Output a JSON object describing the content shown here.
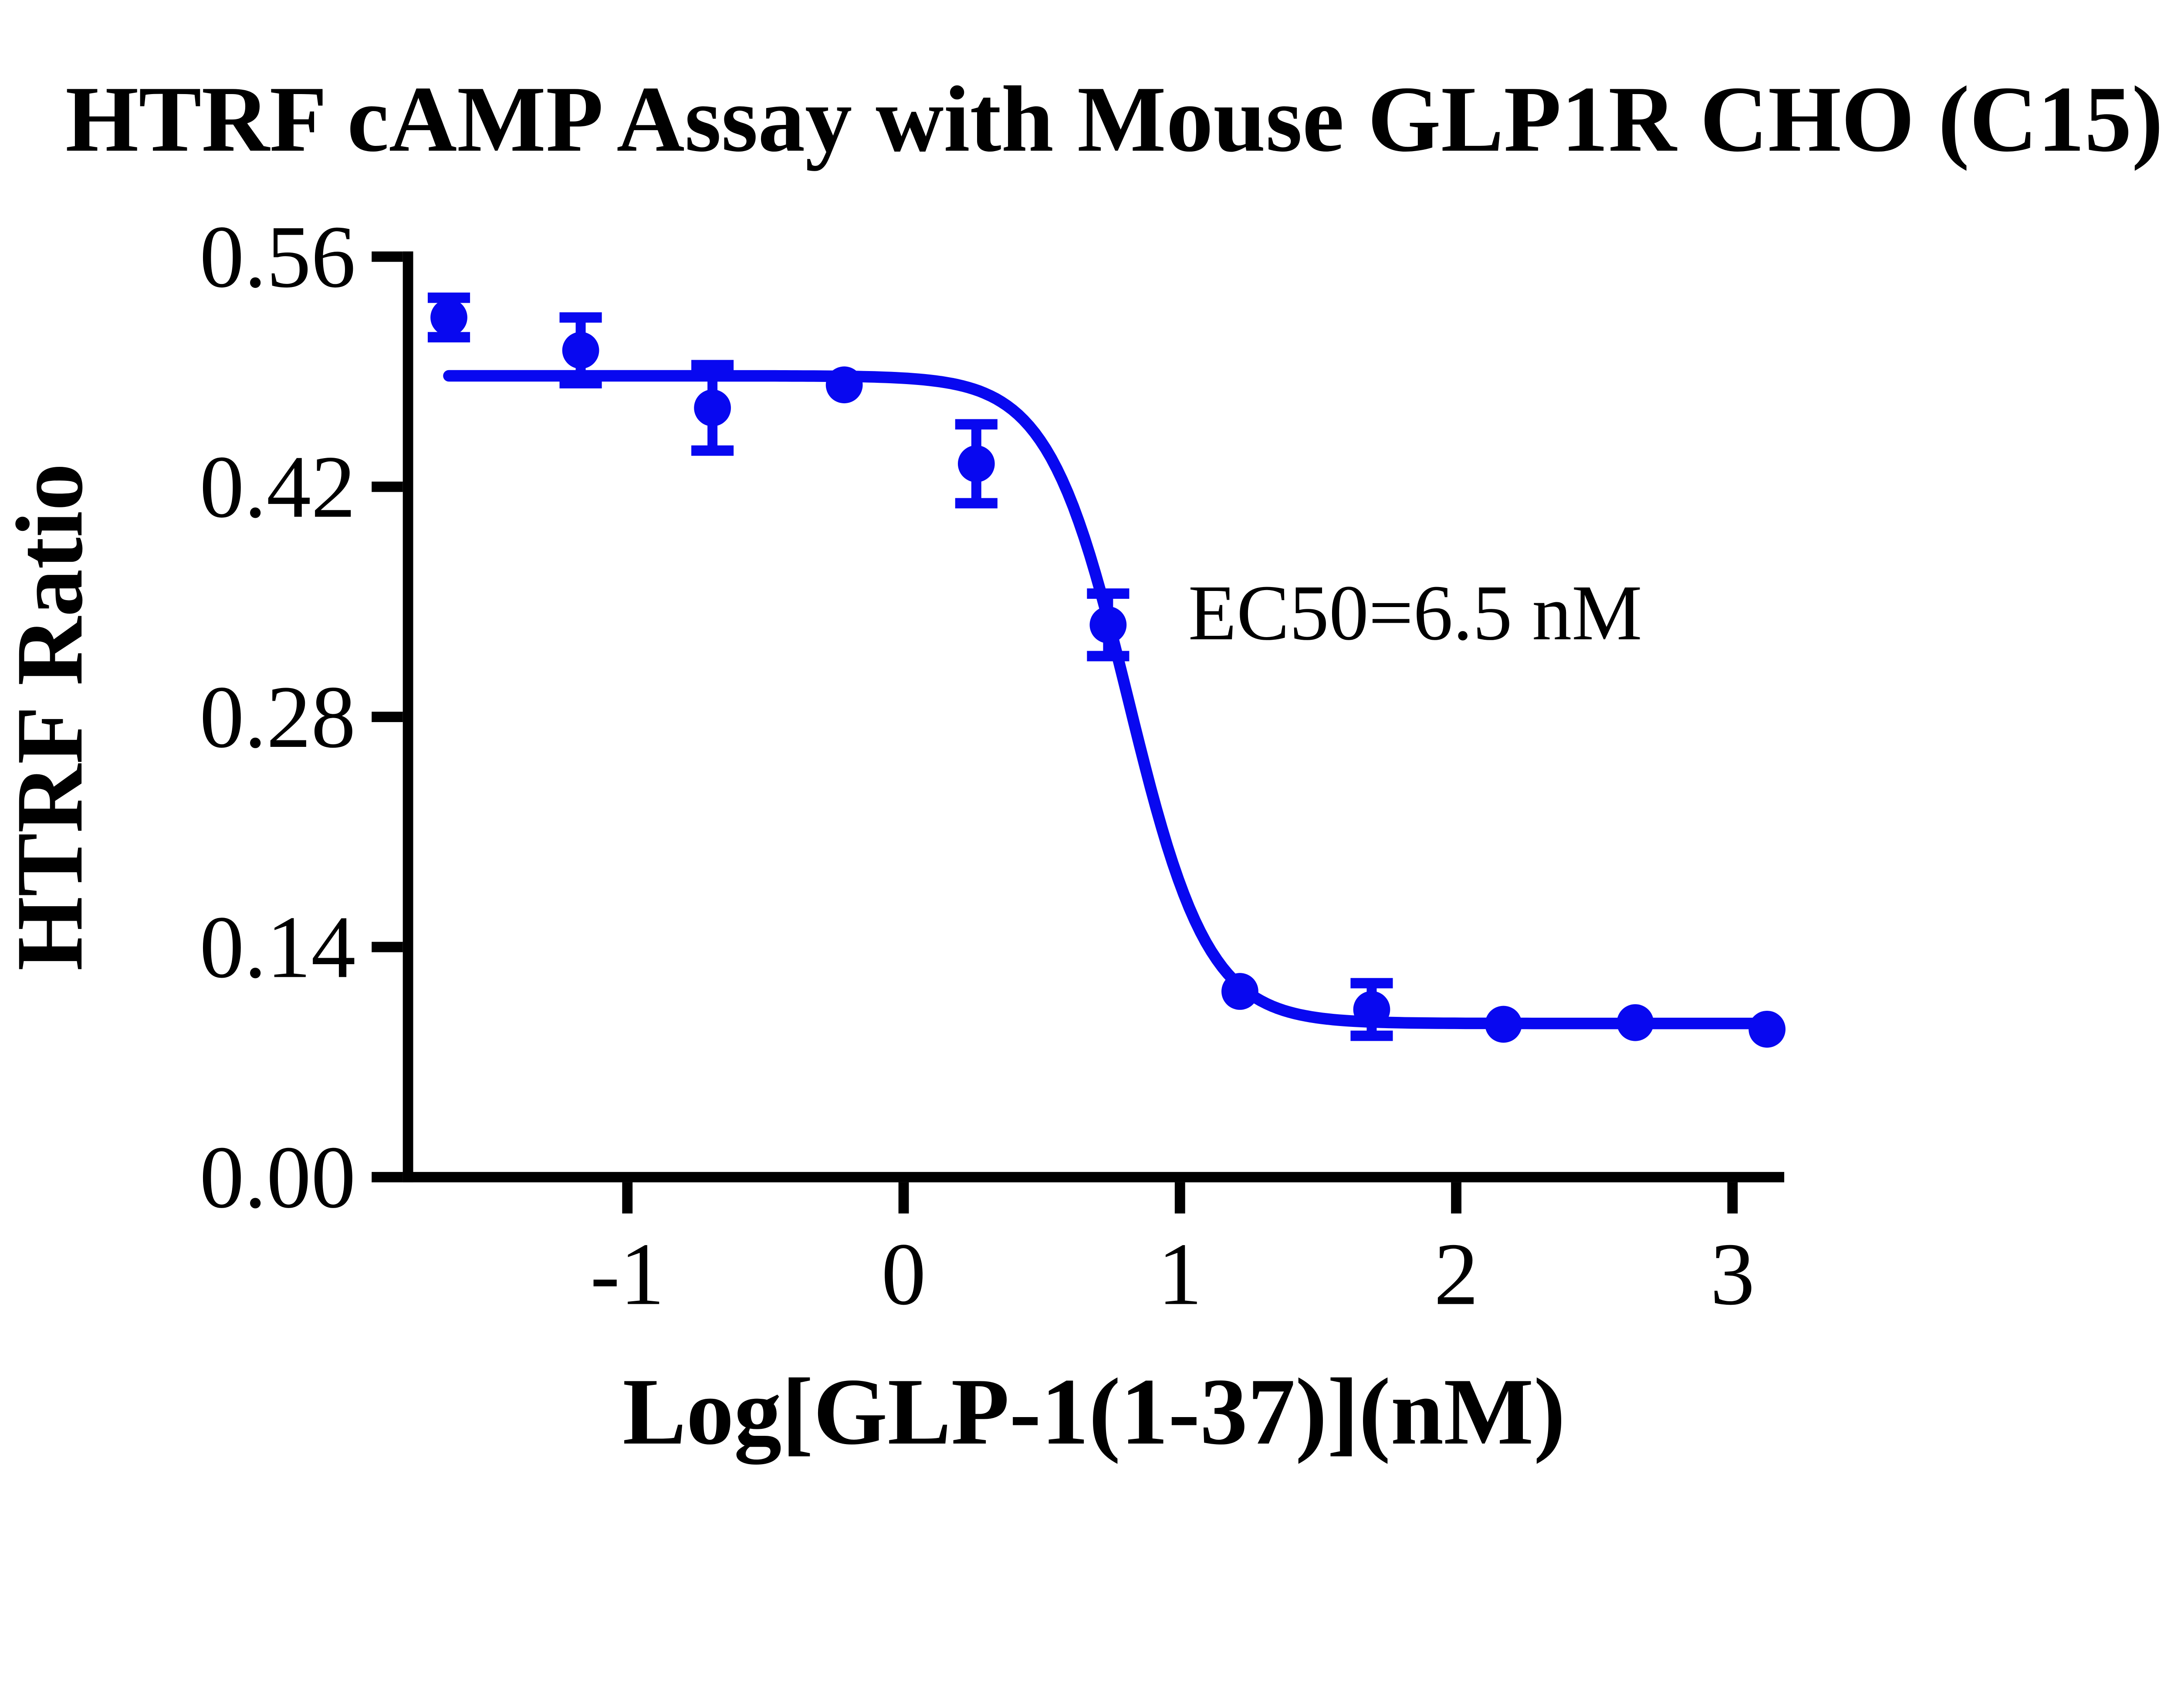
{
  "page": {
    "background_color": "#ffffff"
  },
  "chart_data": {
    "type": "scatter",
    "title": "HTRF cAMP Assay with Mouse GLP1R CHO (C15)",
    "xlabel": "Log[GLP-1(1-37)](nM)",
    "ylabel": "HTRF Ratio",
    "annotation": "EC50=6.5 nM",
    "ec50_nM": 6.5,
    "series_color": "#0808f0",
    "axis_color": "#000000",
    "grid": false,
    "legend": "none",
    "xlim": [
      -1.79,
      3.17
    ],
    "ylim": [
      0.0,
      0.56
    ],
    "x_ticks": [
      -1,
      0,
      1,
      2,
      3
    ],
    "x_tick_labels": [
      "-1",
      "0",
      "1",
      "2",
      "3"
    ],
    "y_ticks": [
      0.0,
      0.14,
      0.28,
      0.42,
      0.56
    ],
    "y_tick_labels": [
      "0.00",
      "0.14",
      "0.28",
      "0.42",
      "0.56"
    ],
    "points": [
      {
        "log_conc": -1.646,
        "htrf_ratio": 0.523,
        "error": 0.012
      },
      {
        "log_conc": -1.169,
        "htrf_ratio": 0.503,
        "error": 0.02
      },
      {
        "log_conc": -0.692,
        "htrf_ratio": 0.468,
        "error": 0.026
      },
      {
        "log_conc": -0.215,
        "htrf_ratio": 0.482,
        "error": 0
      },
      {
        "log_conc": 0.263,
        "htrf_ratio": 0.434,
        "error": 0.024
      },
      {
        "log_conc": 0.74,
        "htrf_ratio": 0.336,
        "error": 0.019
      },
      {
        "log_conc": 1.217,
        "htrf_ratio": 0.113,
        "error": 0
      },
      {
        "log_conc": 1.694,
        "htrf_ratio": 0.102,
        "error": 0.016
      },
      {
        "log_conc": 2.171,
        "htrf_ratio": 0.093,
        "error": 0
      },
      {
        "log_conc": 2.648,
        "htrf_ratio": 0.094,
        "error": 0
      },
      {
        "log_conc": 3.125,
        "htrf_ratio": 0.09,
        "error": 0
      }
    ],
    "fit_curve": {
      "model": "4PL",
      "top": 0.4875,
      "bottom": 0.0935,
      "log_ec50": 0.813,
      "hill_slope": 3.0,
      "x_start": -1.646,
      "x_end": 3.125
    }
  }
}
